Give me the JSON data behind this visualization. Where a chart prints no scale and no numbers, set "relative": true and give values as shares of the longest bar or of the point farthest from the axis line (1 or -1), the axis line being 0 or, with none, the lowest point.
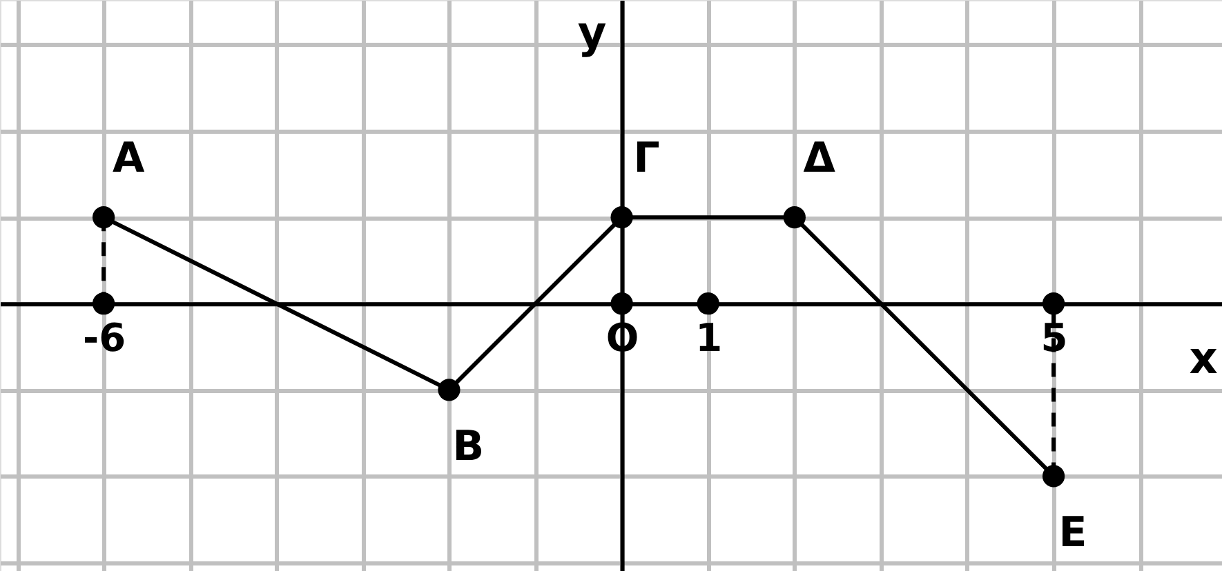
{
  "chart_data": {
    "type": "line",
    "relative": true,
    "xlabel": "x",
    "ylabel": "y",
    "xlim": [
      -7.2,
      6.95
    ],
    "xticks": [
      {
        "value": -7,
        "label": null
      },
      -6,
      {
        "value": -5,
        "label": null
      },
      {
        "value": -4,
        "label": null
      },
      {
        "value": -3,
        "label": null
      },
      {
        "value": -2,
        "label": null
      },
      {
        "value": -1,
        "label": null
      },
      {
        "value": 0,
        "label": "O"
      },
      1,
      {
        "value": 2,
        "label": null
      },
      {
        "value": 3,
        "label": null
      },
      {
        "value": 4,
        "label": null
      },
      5,
      {
        "value": 6,
        "label": null
      }
    ],
    "grid": true,
    "series": [
      {
        "color": "#000000",
        "marker": "circle",
        "line_style": "solid",
        "x": [
          -6,
          -2,
          0,
          2,
          5
        ],
        "values": [
          0.5,
          -0.5,
          0.5,
          0.5,
          -1
        ]
      },
      {
        "type": "line",
        "color": "#000000",
        "marker": "none",
        "line_style": "dashed",
        "x": [
          -6,
          -6
        ],
        "values": [
          0.5,
          0
        ]
      },
      {
        "type": "line",
        "color": "#000000",
        "marker": "none",
        "line_style": "dashed",
        "x": [
          5,
          5
        ],
        "values": [
          -1,
          0
        ]
      },
      {
        "type": "scatter",
        "color": "#000000",
        "marker": "circle",
        "x": [
          -6,
          0,
          1,
          5
        ],
        "values": [
          0,
          0,
          0,
          0
        ]
      }
    ],
    "annotations": [
      {
        "text": "A",
        "x": -6,
        "y": 0.5
      },
      {
        "text": "B",
        "x": -2,
        "y": -0.5
      },
      {
        "text": "Γ",
        "x": 0,
        "y": 0.5
      },
      {
        "text": "Δ",
        "x": 2,
        "y": 0.5
      },
      {
        "text": "E",
        "x": 5,
        "y": -1
      }
    ]
  }
}
